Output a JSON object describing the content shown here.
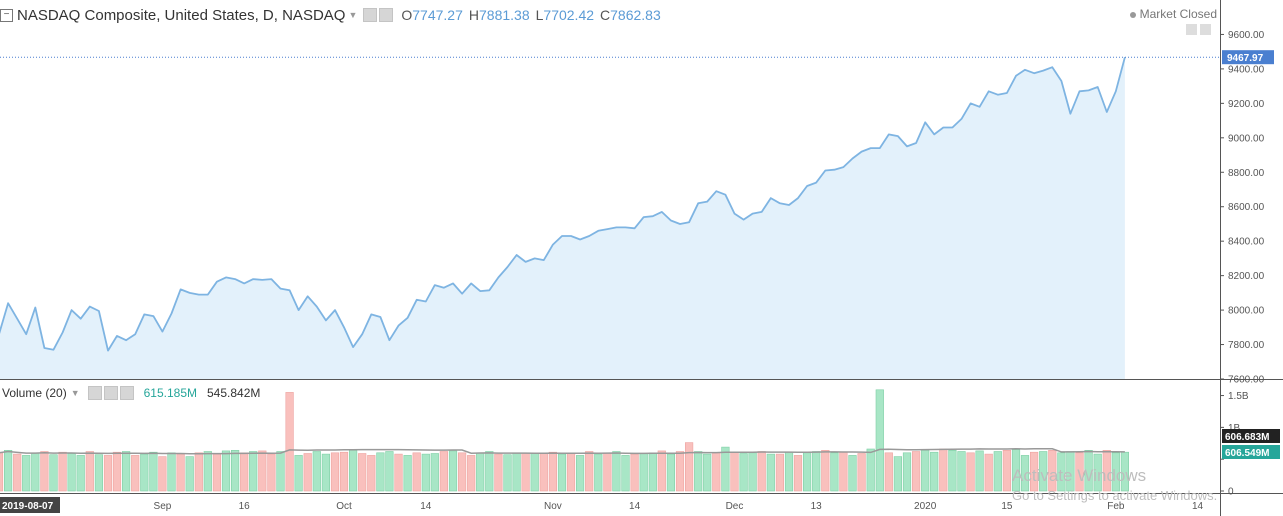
{
  "header": {
    "title": "NASDAQ Composite, United States, D, NASDAQ",
    "o_label": "O",
    "o_value": "7747.27",
    "h_label": "H",
    "h_value": "7881.38",
    "l_label": "L",
    "l_value": "7702.42",
    "c_label": "C",
    "c_value": "7862.83",
    "status": "Market Closed"
  },
  "volume_header": {
    "label": "Volume (20)",
    "value1": "615.185M",
    "value2": "545.842M"
  },
  "watermark": {
    "line1": "Activate Windows",
    "line2": "Go to Settings to activate Windows."
  },
  "colors": {
    "line": "#7eb4e2",
    "area": "#e3f1fb",
    "vol_up": "#a8e6c6",
    "vol_down": "#f9c0bd",
    "ma": "#999999",
    "label_blue": "#4a7fd0",
    "label_green": "#26a69a"
  },
  "icons": [
    "collapse-icon",
    "settings-icon",
    "close-icon"
  ],
  "chart_data": [
    {
      "type": "area",
      "title": "NASDAQ Composite, United States, D, NASDAQ",
      "start_date": "2019-08-07",
      "y_ticks": [
        7600,
        7800,
        8000,
        8200,
        8400,
        8600,
        8800,
        9000,
        9200,
        9400,
        9600
      ],
      "y_tick_labels": [
        "7600.00",
        "7800.00",
        "8000.00",
        "8200.00",
        "8400.00",
        "8600.00",
        "8800.00",
        "9000.00",
        "9200.00",
        "9400.00",
        "9600.00"
      ],
      "ylim": [
        7600,
        9620
      ],
      "last_value": 9467.97,
      "last_value_label": "9467.97",
      "grid": false,
      "x_tick_labels": [
        {
          "index": 0,
          "label": "2019-08-07"
        },
        {
          "index": 18,
          "label": "Sep"
        },
        {
          "index": 27,
          "label": "16"
        },
        {
          "index": 38,
          "label": "Oct"
        },
        {
          "index": 47,
          "label": "14"
        },
        {
          "index": 61,
          "label": "Nov"
        },
        {
          "index": 70,
          "label": "14"
        },
        {
          "index": 81,
          "label": "Dec"
        },
        {
          "index": 90,
          "label": "13"
        },
        {
          "index": 102,
          "label": "2020"
        },
        {
          "index": 111,
          "label": "15"
        },
        {
          "index": 123,
          "label": "Feb"
        },
        {
          "index": 132,
          "label": "14"
        }
      ],
      "values": [
        7860,
        8040,
        7950,
        7860,
        8015,
        7780,
        7770,
        7870,
        8000,
        7950,
        8020,
        7995,
        7765,
        7850,
        7825,
        7860,
        7975,
        7965,
        7875,
        7980,
        8120,
        8100,
        8090,
        8090,
        8165,
        8190,
        8180,
        8155,
        8180,
        8175,
        8180,
        8125,
        8115,
        8000,
        8080,
        8020,
        7940,
        8000,
        7900,
        7785,
        7860,
        7975,
        7960,
        7825,
        7910,
        7955,
        8060,
        8050,
        8145,
        8130,
        8155,
        8095,
        8155,
        8110,
        8115,
        8190,
        8250,
        8320,
        8280,
        8300,
        8290,
        8380,
        8430,
        8430,
        8410,
        8430,
        8460,
        8470,
        8480,
        8480,
        8475,
        8540,
        8545,
        8570,
        8520,
        8500,
        8510,
        8620,
        8630,
        8690,
        8670,
        8560,
        8525,
        8560,
        8570,
        8650,
        8620,
        8610,
        8650,
        8720,
        8740,
        8810,
        8815,
        8830,
        8880,
        8920,
        8940,
        8940,
        9020,
        9010,
        8950,
        8970,
        9090,
        9020,
        9060,
        9060,
        9110,
        9200,
        9180,
        9270,
        9250,
        9260,
        9360,
        9395,
        9375,
        9390,
        9410,
        9330,
        9140,
        9270,
        9275,
        9295,
        9150,
        9270,
        9468
      ]
    },
    {
      "type": "bar",
      "title": "Volume (20)",
      "y_tick_labels": [
        "0",
        "500M",
        "1B",
        "1.5B"
      ],
      "ylim": [
        0,
        1650
      ],
      "unit": "M",
      "ma_value_label": "606.683M",
      "last_value_label": "606.549M",
      "values": [
        600,
        640,
        580,
        560,
        600,
        620,
        570,
        610,
        590,
        560,
        620,
        570,
        560,
        610,
        620,
        560,
        580,
        610,
        540,
        600,
        580,
        540,
        600,
        620,
        580,
        630,
        640,
        600,
        620,
        630,
        580,
        620,
        1550,
        560,
        590,
        620,
        580,
        600,
        610,
        640,
        590,
        560,
        600,
        620,
        580,
        560,
        600,
        580,
        590,
        620,
        630,
        600,
        560,
        600,
        620,
        580,
        570,
        600,
        600,
        590,
        600,
        610,
        580,
        590,
        560,
        620,
        580,
        600,
        620,
        560,
        580,
        590,
        600,
        630,
        580,
        620,
        760,
        620,
        580,
        600,
        690,
        610,
        590,
        600,
        620,
        580,
        580,
        610,
        560,
        600,
        620,
        640,
        600,
        610,
        560,
        590,
        660,
        1590,
        600,
        540,
        600,
        620,
        640,
        610,
        660,
        640,
        620,
        600,
        630,
        580,
        620,
        640,
        650,
        560,
        610,
        620,
        640,
        600,
        620,
        600,
        640,
        580,
        640,
        600,
        610
      ],
      "up": [
        false,
        true,
        false,
        true,
        true,
        false,
        true,
        false,
        true,
        true,
        false,
        true,
        false,
        false,
        true,
        false,
        true,
        true,
        false,
        true,
        false,
        true,
        false,
        true,
        false,
        true,
        true,
        false,
        true,
        false,
        false,
        true,
        false,
        true,
        false,
        true,
        true,
        false,
        false,
        true,
        false,
        false,
        true,
        true,
        false,
        true,
        false,
        true,
        true,
        false,
        true,
        false,
        false,
        true,
        true,
        false,
        true,
        true,
        false,
        true,
        false,
        false,
        true,
        false,
        true,
        false,
        true,
        false,
        true,
        true,
        false,
        true,
        true,
        false,
        true,
        false,
        false,
        true,
        true,
        false,
        true,
        false,
        true,
        true,
        false,
        true,
        false,
        true,
        false,
        true,
        true,
        false,
        true,
        false,
        true,
        false,
        true,
        true,
        false,
        true,
        true,
        false,
        true,
        true,
        false,
        true,
        true,
        false,
        true,
        false,
        true,
        false,
        true,
        true,
        false,
        true,
        false,
        true,
        true,
        false,
        true,
        true,
        false,
        true,
        true
      ]
    }
  ]
}
